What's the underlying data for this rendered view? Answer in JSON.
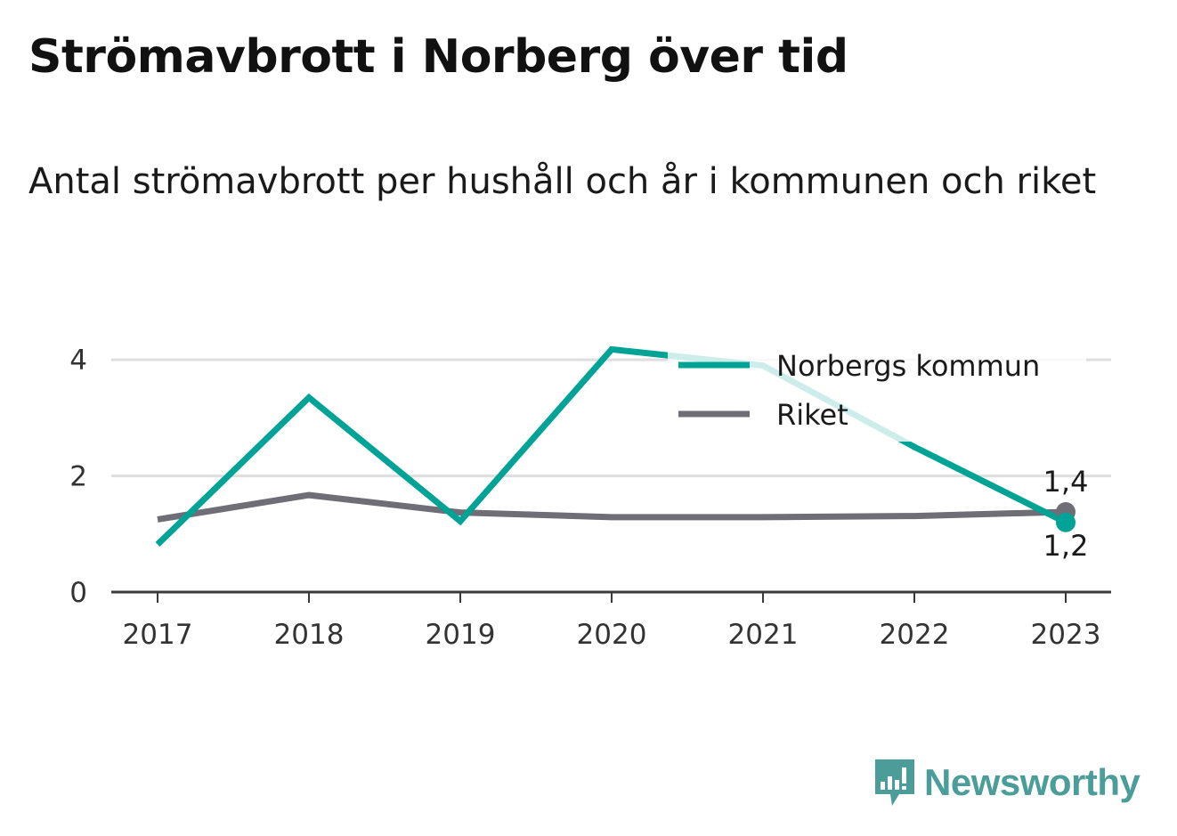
{
  "title": "Strömavbrott i Norberg över tid",
  "subtitle": "Antal strömavbrott per hushåll och år i kommunen och riket",
  "brand": {
    "name": "Newsworthy",
    "color": "#4a9d98"
  },
  "chart_data": {
    "type": "line",
    "x": [
      "2017",
      "2018",
      "2019",
      "2020",
      "2021",
      "2022",
      "2023"
    ],
    "ylim": [
      0,
      4.6
    ],
    "yticks": [
      "0",
      "2",
      "4"
    ],
    "ytick_values": [
      0,
      2,
      4
    ],
    "grid": true,
    "legend_position": "top-right",
    "series": [
      {
        "name": "Norbergs kommun",
        "color": "#00a396",
        "values": [
          0.82,
          3.35,
          1.22,
          4.18,
          3.9,
          2.5,
          1.2
        ]
      },
      {
        "name": "Riket",
        "color": "#6f6d76",
        "values": [
          1.25,
          1.67,
          1.37,
          1.29,
          1.29,
          1.31,
          1.38
        ]
      }
    ],
    "end_labels": [
      "1,2",
      "1,4"
    ]
  }
}
